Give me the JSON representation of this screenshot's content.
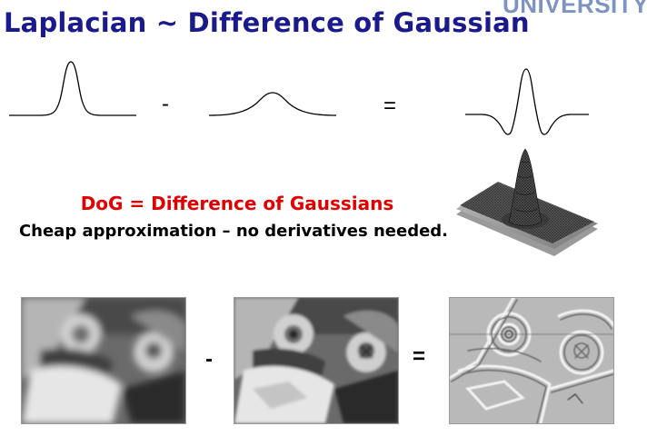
{
  "slide": {
    "title": "Laplacian ~ Difference of Gaussian",
    "logo_text": "UNIVERSITY"
  },
  "equation_top": {
    "minus": "-",
    "equals": "="
  },
  "caption": {
    "heading": "DoG = Difference of Gaussians",
    "subtext": "Cheap approximation – no derivatives needed."
  },
  "equation_bottom": {
    "minus": "-",
    "equals": "="
  },
  "colors": {
    "title": "#1a1a8c",
    "heading": "#e00000",
    "logo": "#7d94c2"
  }
}
